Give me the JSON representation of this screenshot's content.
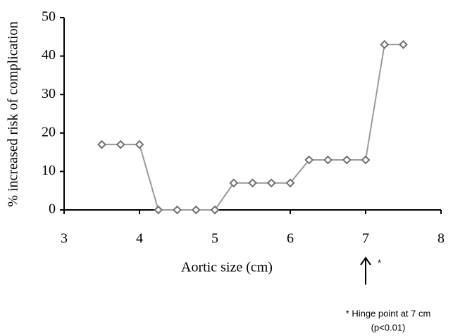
{
  "chart_data": {
    "type": "line",
    "ylabel": "% increased risk of complication",
    "xlabel": "Aortic size (cm)",
    "x": [
      3.5,
      3.75,
      4,
      4.25,
      4.5,
      4.75,
      5,
      5.25,
      5.5,
      5.75,
      6,
      6.25,
      6.5,
      6.75,
      7,
      7.25,
      7.5
    ],
    "series": [
      {
        "color": "#9a9a9a",
        "marker_color": "#6f6f6f",
        "values": [
          17,
          17,
          17,
          0,
          0,
          0,
          0,
          7,
          7,
          7,
          7,
          13,
          13,
          13,
          13,
          43,
          43
        ]
      }
    ],
    "xlim": [
      3,
      8
    ],
    "xticks": [
      3,
      4,
      5,
      6,
      7,
      8
    ],
    "ylim": [
      0,
      50
    ],
    "yticks": [
      0,
      10,
      20,
      30,
      40,
      50
    ],
    "grid": false,
    "annotations": [
      "*",
      "* Hinge point at 7 cm",
      "(p<0.01)"
    ]
  }
}
